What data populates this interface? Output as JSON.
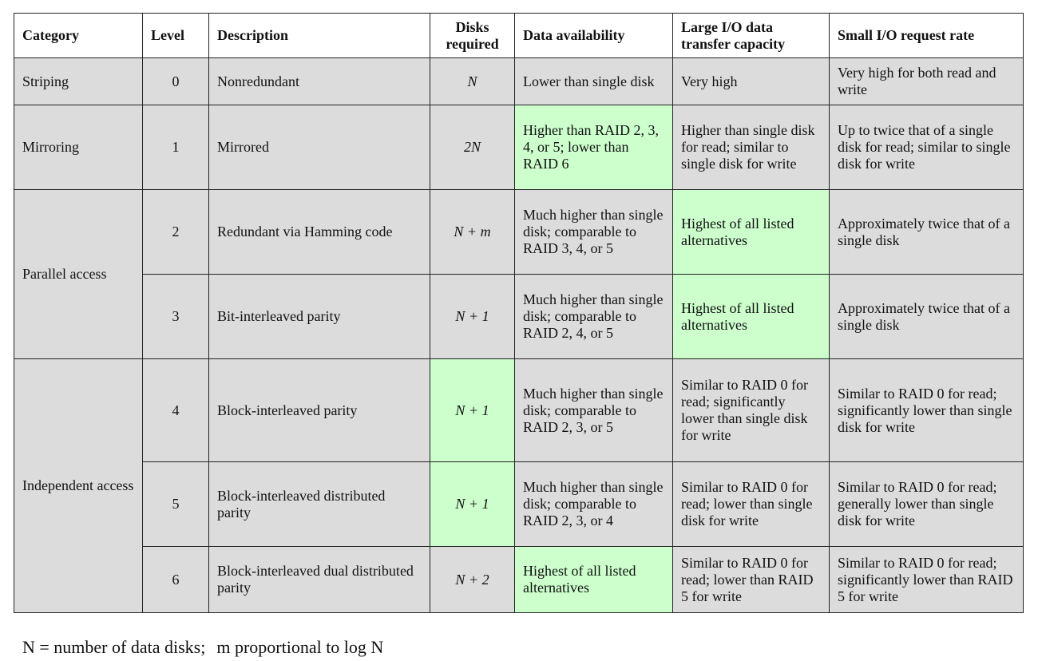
{
  "table": {
    "headers": {
      "category": "Category",
      "level": "Level",
      "description": "Description",
      "disks": "Disks required",
      "availability": "Data availability",
      "large_io": "Large I/O data transfer capacity",
      "small_io": "Small I/O request rate"
    },
    "categories": {
      "striping": "Striping",
      "mirroring": "Mirroring",
      "parallel": "Parallel access",
      "independent": "Independent access"
    },
    "rows": [
      {
        "level": "0",
        "description": "Nonredundant",
        "disks": "N",
        "availability": "Lower than single disk",
        "large_io": "Very high",
        "small_io": "Very high for both read and write"
      },
      {
        "level": "1",
        "description": "Mirrored",
        "disks": "2N",
        "availability": "Higher than RAID 2, 3, 4, or 5; lower than RAID 6",
        "large_io": "Higher than single disk for read; similar to single disk for write",
        "small_io": "Up to twice that of a single disk for read; similar to single disk for write"
      },
      {
        "level": "2",
        "description": "Redundant via Hamming code",
        "disks": "N + m",
        "availability": "Much higher than single disk; comparable to RAID 3, 4, or 5",
        "large_io": "Highest of all listed alternatives",
        "small_io": "Approximately twice that of a single disk"
      },
      {
        "level": "3",
        "description": "Bit-interleaved parity",
        "disks": "N + 1",
        "availability": "Much higher than single disk; comparable to RAID 2, 4, or 5",
        "large_io": "Highest of all listed alternatives",
        "small_io": "Approximately twice that of a single disk"
      },
      {
        "level": "4",
        "description": "Block-interleaved parity",
        "disks": "N + 1",
        "availability": "Much higher than single disk; comparable to RAID 2, 3, or 5",
        "large_io": "Similar to RAID 0 for read; significantly lower than single disk for write",
        "small_io": "Similar to RAID 0 for read; significantly lower than single disk for write"
      },
      {
        "level": "5",
        "description": "Block-interleaved distributed parity",
        "disks": "N + 1",
        "availability": "Much higher than single disk; comparable to RAID 2, 3, or 4",
        "large_io": "Similar to RAID 0 for read; lower than single disk for write",
        "small_io": "Similar to RAID 0 for read; generally lower than single disk for write"
      },
      {
        "level": "6",
        "description": "Block-interleaved dual distributed parity",
        "disks": "N + 2",
        "availability": "Highest of all listed alternatives",
        "large_io": "Similar to RAID 0 for read; lower than RAID 5 for write",
        "small_io": "Similar to RAID 0 for read; significantly lower than RAID 5 for write"
      }
    ],
    "colors": {
      "shaded": "#dcdcdc",
      "highlight": "#ccffcc",
      "border": "#222222"
    }
  },
  "footnote": {
    "part1": "N = number of data disks;",
    "part2": "m proportional to log N"
  }
}
